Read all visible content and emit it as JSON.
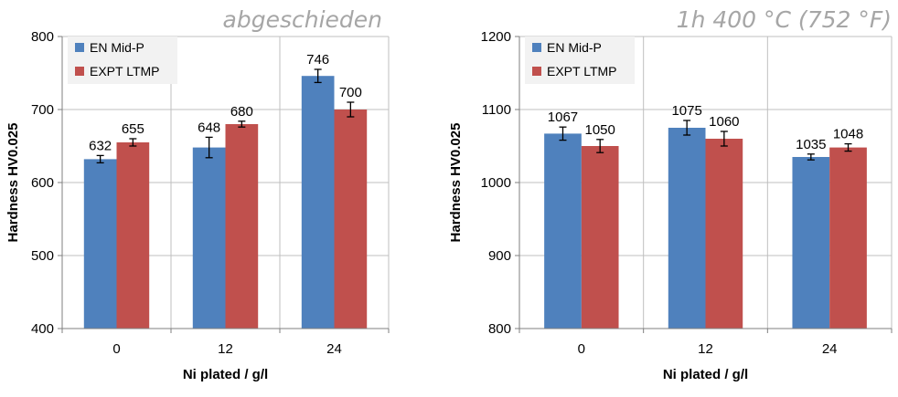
{
  "colors": {
    "series1": "#4f81bd",
    "series2": "#c0504d",
    "grid": "#bfbfbf",
    "title": "#a6a6a6"
  },
  "chart_data": [
    {
      "type": "bar",
      "title": "abgeschieden",
      "xlabel": "Ni plated / g/l",
      "ylabel": "Hardness HV0.025",
      "categories": [
        "0",
        "12",
        "24"
      ],
      "ylim": [
        400,
        800
      ],
      "yticks": [
        "400",
        "500",
        "600",
        "700",
        "800"
      ],
      "grid": true,
      "legend": "top-left",
      "series": [
        {
          "name": "EN Mid-P",
          "values": [
            632,
            648,
            746
          ],
          "labels": [
            "632",
            "648",
            "746"
          ],
          "errors": [
            5,
            14,
            9
          ]
        },
        {
          "name": "EXPT LTMP",
          "values": [
            655,
            680,
            700
          ],
          "labels": [
            "655",
            "680",
            "700"
          ],
          "errors": [
            5,
            4,
            10
          ]
        }
      ]
    },
    {
      "type": "bar",
      "title": "1h 400 °C (752 °F)",
      "xlabel": "Ni plated / g/l",
      "ylabel": "Hardness HV0.025",
      "categories": [
        "0",
        "12",
        "24"
      ],
      "ylim": [
        800,
        1200
      ],
      "yticks": [
        "800",
        "900",
        "1000",
        "1100",
        "1200"
      ],
      "grid": true,
      "legend": "top-left",
      "series": [
        {
          "name": "EN Mid-P",
          "values": [
            1067,
            1075,
            1035
          ],
          "labels": [
            "1067",
            "1075",
            "1035"
          ],
          "errors": [
            9,
            10,
            4
          ]
        },
        {
          "name": "EXPT LTMP",
          "values": [
            1050,
            1060,
            1048
          ],
          "labels": [
            "1050",
            "1060",
            "1048"
          ],
          "errors": [
            9,
            10,
            5
          ]
        }
      ]
    }
  ]
}
